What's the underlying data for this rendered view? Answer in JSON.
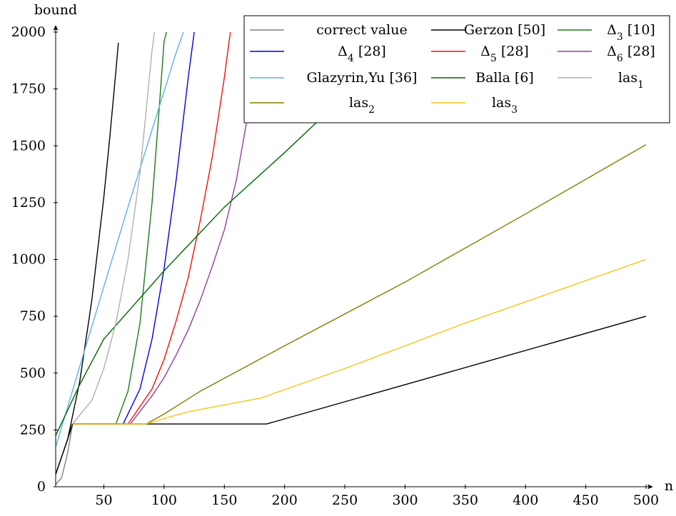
{
  "chart_data": {
    "type": "line",
    "title": "",
    "xlabel": "n",
    "ylabel": "bound",
    "xlim": [
      10,
      500
    ],
    "ylim": [
      0,
      2000
    ],
    "x_ticks": [
      50,
      100,
      150,
      200,
      250,
      300,
      350,
      400,
      450,
      500
    ],
    "y_ticks": [
      0,
      250,
      500,
      750,
      1000,
      1250,
      1500,
      1750,
      2000
    ],
    "grid": false,
    "legend_position": "top-right",
    "series": [
      {
        "name": "correct value",
        "color": "#808080",
        "points": [
          [
            10,
            10
          ],
          [
            15,
            40
          ],
          [
            20,
            150
          ],
          [
            24,
            276
          ]
        ]
      },
      {
        "name": "Gerzon [50]",
        "color": "#000000",
        "points": [
          [
            10,
            55
          ],
          [
            20,
            210
          ],
          [
            24,
            276
          ],
          [
            185,
            276
          ],
          [
            500,
            750
          ]
        ],
        "extra_curve": [
          [
            10,
            55
          ],
          [
            20,
            210
          ],
          [
            30,
            465
          ],
          [
            40,
            820
          ],
          [
            50,
            1275
          ],
          [
            55,
            1540
          ],
          [
            60,
            1830
          ],
          [
            62,
            1953
          ]
        ]
      },
      {
        "name": "Δ3 [10]",
        "color": "#1a7a1a",
        "points": [
          [
            24,
            276
          ],
          [
            60,
            276
          ],
          [
            70,
            420
          ],
          [
            80,
            720
          ],
          [
            90,
            1250
          ],
          [
            95,
            1600
          ],
          [
            100,
            1960
          ],
          [
            102,
            2000
          ]
        ]
      },
      {
        "name": "Δ4 [28]",
        "color": "#0000dd",
        "points": [
          [
            24,
            276
          ],
          [
            66,
            276
          ],
          [
            80,
            430
          ],
          [
            90,
            650
          ],
          [
            100,
            960
          ],
          [
            110,
            1350
          ],
          [
            120,
            1800
          ],
          [
            125,
            2000
          ]
        ]
      },
      {
        "name": "Δ5 [28]",
        "color": "#ee1111",
        "points": [
          [
            24,
            276
          ],
          [
            70,
            276
          ],
          [
            90,
            430
          ],
          [
            100,
            560
          ],
          [
            110,
            730
          ],
          [
            120,
            920
          ],
          [
            130,
            1170
          ],
          [
            140,
            1450
          ],
          [
            150,
            1800
          ],
          [
            155,
            2000
          ]
        ]
      },
      {
        "name": "Δ6 [28]",
        "color": "#904099",
        "points": [
          [
            24,
            276
          ],
          [
            72,
            276
          ],
          [
            90,
            400
          ],
          [
            100,
            480
          ],
          [
            110,
            580
          ],
          [
            120,
            690
          ],
          [
            130,
            820
          ],
          [
            140,
            970
          ],
          [
            150,
            1130
          ],
          [
            160,
            1350
          ],
          [
            170,
            1650
          ],
          [
            180,
            2000
          ]
        ]
      },
      {
        "name": "Glazyrin,Yu [36]",
        "color": "#5ab4e6",
        "points": [
          [
            10,
            175
          ],
          [
            30,
            530
          ],
          [
            50,
            880
          ],
          [
            70,
            1230
          ],
          [
            90,
            1570
          ],
          [
            110,
            1910
          ],
          [
            116,
            2000
          ]
        ]
      },
      {
        "name": "Balla [6]",
        "color": "#006600",
        "points": [
          [
            10,
            225
          ],
          [
            30,
            450
          ],
          [
            50,
            650
          ],
          [
            100,
            950
          ],
          [
            150,
            1230
          ],
          [
            200,
            1470
          ],
          [
            230,
            1620
          ]
        ]
      },
      {
        "name": "las1",
        "color": "#b0b0b0",
        "points": [
          [
            24,
            276
          ],
          [
            40,
            380
          ],
          [
            50,
            520
          ],
          [
            60,
            720
          ],
          [
            70,
            1000
          ],
          [
            80,
            1380
          ],
          [
            85,
            1650
          ],
          [
            90,
            1920
          ],
          [
            92,
            2000
          ]
        ]
      },
      {
        "name": "las2",
        "color": "#808000",
        "points": [
          [
            24,
            276
          ],
          [
            85,
            276
          ],
          [
            100,
            320
          ],
          [
            130,
            420
          ],
          [
            200,
            620
          ],
          [
            300,
            900
          ],
          [
            400,
            1200
          ],
          [
            500,
            1505
          ]
        ]
      },
      {
        "name": "las3",
        "color": "#f5c518",
        "points": [
          [
            24,
            276
          ],
          [
            85,
            276
          ],
          [
            100,
            300
          ],
          [
            120,
            330
          ],
          [
            180,
            390
          ],
          [
            250,
            520
          ],
          [
            350,
            720
          ],
          [
            500,
            1000
          ]
        ]
      }
    ],
    "legend": [
      [
        "correct value",
        "Gerzon [50]",
        "Δ3 [10]"
      ],
      [
        "Δ4 [28]",
        "Δ5 [28]",
        "Δ6 [28]"
      ],
      [
        "Glazyrin,Yu [36]",
        "Balla [6]",
        "las1"
      ],
      [
        "las2",
        "las3"
      ]
    ]
  }
}
